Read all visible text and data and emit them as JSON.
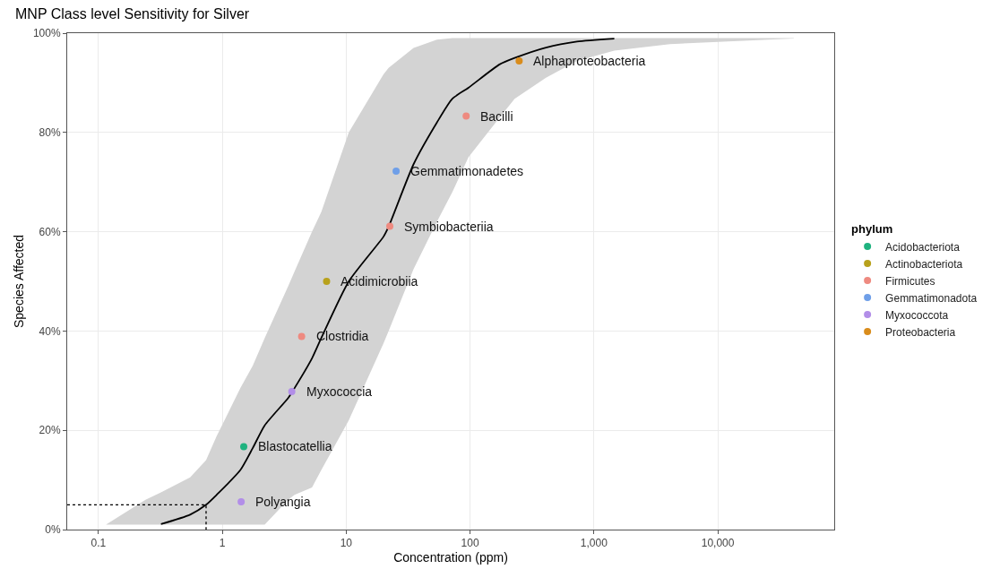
{
  "chart_data": {
    "type": "scatter",
    "title": "MNP Class level Sensitivity for Silver",
    "xlabel": "Concentration (ppm)",
    "ylabel": "Species Affected",
    "legend_title": "phylum",
    "log": "x",
    "grid": true,
    "legend": "right",
    "marker": "circle",
    "xlim": [
      0.056,
      87000
    ],
    "xticks": [
      0.1,
      1,
      10,
      100,
      {
        "value": 1000,
        "label": "1,000"
      },
      {
        "value": 10000,
        "label": "10,000"
      }
    ],
    "ylim": [
      0,
      100
    ],
    "yticks": [
      {
        "value": 0,
        "label": "0%"
      },
      {
        "value": 20,
        "label": "20%"
      },
      {
        "value": 40,
        "label": "40%"
      },
      {
        "value": 60,
        "label": "60%"
      },
      {
        "value": 80,
        "label": "80%"
      },
      {
        "value": 100,
        "label": "100%"
      }
    ],
    "series": [
      {
        "type": "line",
        "color": "#000000",
        "line_style": "solid",
        "marker": "none",
        "x": [
          0.115,
          0.24,
          0.32,
          0.55,
          0.74,
          0.9,
          1.4,
          1.76,
          2.2,
          3.4,
          3.83,
          5.3,
          6.3,
          10.5,
          20,
          22,
          35,
          54,
          72,
          97,
          173,
          229,
          410,
          730,
          1460,
          4100,
          41000
        ],
        "values": [
          null,
          null,
          1.1,
          3,
          5,
          7,
          12,
          16.4,
          21,
          26.5,
          28.5,
          34.5,
          38.6,
          50,
          59,
          61,
          73.6,
          82,
          86.8,
          89,
          93.7,
          95,
          97.1,
          98.3,
          98.9,
          null,
          null
        ],
        "lower": [
          1,
          1,
          1,
          1,
          1,
          1,
          1,
          1,
          1,
          6,
          7,
          8.5,
          12,
          22,
          37.5,
          40,
          52.5,
          62,
          68,
          75,
          83,
          86.8,
          91,
          94.4,
          96.5,
          97.8,
          98.9
        ],
        "upper": [
          1,
          6,
          7.5,
          10.5,
          14,
          18.8,
          28.5,
          33,
          38.6,
          49,
          52,
          60,
          64,
          80,
          91.7,
          93,
          97,
          98.7,
          99,
          99,
          99,
          99,
          99,
          99,
          99,
          99,
          99
        ]
      },
      {
        "type": "line",
        "color": "#000000",
        "line_style": "dotted",
        "marker": "none",
        "x": [
          0.056,
          0.74,
          0.74
        ],
        "values": [
          5,
          5,
          0
        ]
      },
      {
        "name": "Acidobacteriota",
        "color": "#1fb27f",
        "x": [
          1.49
        ],
        "values": [
          16.7
        ]
      },
      {
        "name": "Actinobacteriota",
        "color": "#b8a11b",
        "x": [
          6.95
        ],
        "values": [
          50
        ]
      },
      {
        "name": "Firmicutes",
        "color": "#ee8a80",
        "x": [
          4.37,
          22.5,
          93
        ],
        "values": [
          38.9,
          61.1,
          83.3
        ]
      },
      {
        "name": "Gemmatimonadota",
        "color": "#6f9fe8",
        "x": [
          25.3
        ],
        "values": [
          72.2
        ]
      },
      {
        "name": "Myxococcota",
        "color": "#b28ee8",
        "x": [
          1.42,
          3.64
        ],
        "values": [
          5.6,
          27.8
        ]
      },
      {
        "name": "Proteobacteria",
        "color": "#d98c1c",
        "x": [
          249
        ],
        "values": [
          94.4
        ]
      }
    ],
    "annotations": [
      {
        "text": "Polyangia",
        "x": 1.42,
        "y": 5.6
      },
      {
        "text": "Blastocatellia",
        "x": 1.49,
        "y": 16.7
      },
      {
        "text": "Myxococcia",
        "x": 3.64,
        "y": 27.8
      },
      {
        "text": "Clostridia",
        "x": 4.37,
        "y": 38.9
      },
      {
        "text": "Acidimicrobiia",
        "x": 6.95,
        "y": 50
      },
      {
        "text": "Symbiobacteriia",
        "x": 22.5,
        "y": 61.1
      },
      {
        "text": "Gemmatimonadetes",
        "x": 25.3,
        "y": 72.2
      },
      {
        "text": "Bacilli",
        "x": 93,
        "y": 83.3
      },
      {
        "text": "Alphaproteobacteria",
        "x": 249,
        "y": 94.4
      }
    ]
  }
}
